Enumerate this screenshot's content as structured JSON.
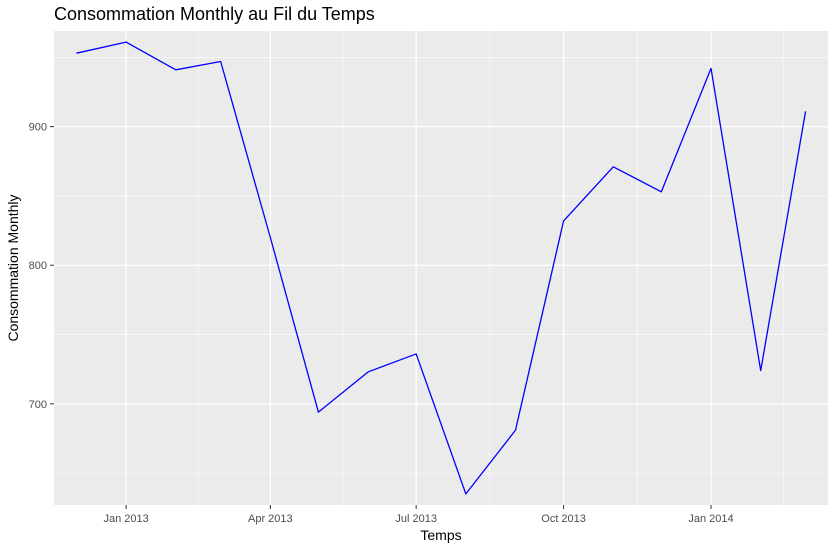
{
  "chart_data": {
    "type": "line",
    "title": "Consommation Monthly au Fil du Temps",
    "xlabel": "Temps",
    "ylabel": "Consommation Monthly",
    "x": [
      "2012-12-01",
      "2013-01-01",
      "2013-02-01",
      "2013-03-01",
      "2013-04-01",
      "2013-05-01",
      "2013-06-01",
      "2013-07-01",
      "2013-08-01",
      "2013-09-01",
      "2013-10-01",
      "2013-11-01",
      "2013-12-01",
      "2014-01-01",
      "2014-02-01",
      "2014-03-01"
    ],
    "series": [
      {
        "values": [
          953,
          961,
          941,
          947,
          820,
          694,
          723,
          736,
          635,
          681,
          832,
          871,
          853,
          942,
          724,
          911
        ],
        "color": "#0000ff"
      }
    ],
    "xlim": [
      "2012-11-17",
      "2014-03-15"
    ],
    "ylim": [
      627,
      969
    ],
    "x_ticks": [
      {
        "value": "2013-01-01",
        "label": "Jan 2013"
      },
      {
        "value": "2013-04-01",
        "label": "Apr 2013"
      },
      {
        "value": "2013-07-01",
        "label": "Jul 2013"
      },
      {
        "value": "2013-10-01",
        "label": "Oct 2013"
      },
      {
        "value": "2014-01-01",
        "label": "Jan 2014"
      }
    ],
    "x_minor_ticks": [
      "2012-11-16",
      "2013-02-15",
      "2013-05-16",
      "2013-08-16",
      "2013-11-16",
      "2014-02-15"
    ],
    "y_ticks": [
      {
        "value": 700,
        "label": "700"
      },
      {
        "value": 800,
        "label": "800"
      },
      {
        "value": 900,
        "label": "900"
      }
    ],
    "y_minor_ticks": [
      650,
      750,
      850,
      950
    ],
    "grid": true,
    "legend": "none",
    "panel_color": "#ebebeb",
    "grid_color": "#ffffff"
  }
}
